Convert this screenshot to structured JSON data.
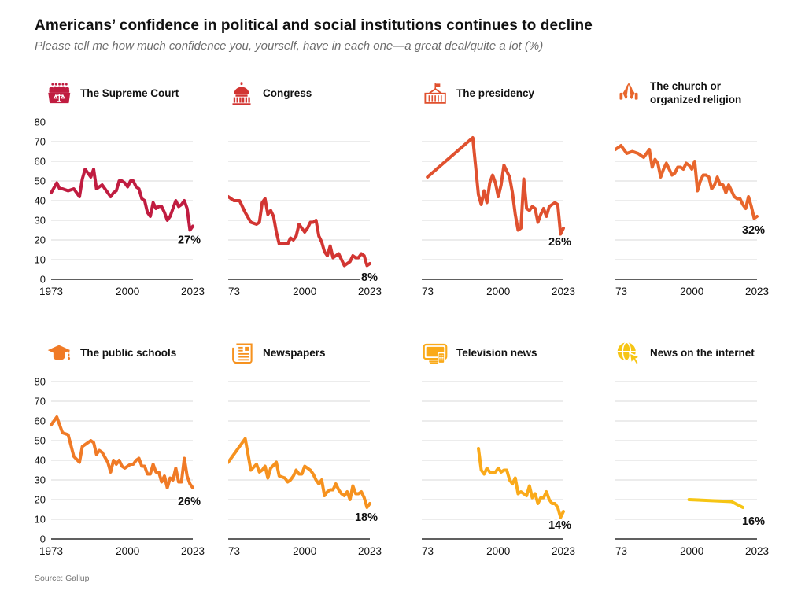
{
  "page": {
    "title": "Americans’ confidence in political and social institutions continues to decline",
    "subtitle": "Please tell me how much confidence you, yourself, have in each one—a great deal/quite a lot (%)",
    "source": "Source: Gallup"
  },
  "axis": {
    "x_range": [
      1973,
      2023
    ],
    "x_ticks": [
      {
        "label": "1973",
        "year": 1973
      },
      {
        "label": "2000",
        "year": 2000
      },
      {
        "label": "2023",
        "year": 2023
      }
    ],
    "y_range": [
      0,
      80
    ],
    "y_tick_labels": [
      "80",
      "70",
      "60",
      "50",
      "40",
      "30",
      "20",
      "10",
      "0"
    ],
    "gridline_color": "#d9d9d9",
    "baseline_color": "#4a4a4a"
  },
  "chart_data": [
    {
      "type": "line",
      "title": "The Supreme Court",
      "icon": "supreme-court-icon",
      "color": "#C01C40",
      "end_label": "27%",
      "show_y_axis_labels": true,
      "grid_values": [
        10,
        20,
        30,
        40,
        50,
        60,
        70
      ],
      "points": [
        [
          1973,
          44
        ],
        [
          1975,
          49
        ],
        [
          1976,
          46
        ],
        [
          1977,
          46
        ],
        [
          1979,
          45
        ],
        [
          1981,
          46
        ],
        [
          1983,
          42
        ],
        [
          1984,
          51
        ],
        [
          1985,
          56
        ],
        [
          1986,
          54
        ],
        [
          1987,
          52
        ],
        [
          1988,
          56
        ],
        [
          1989,
          46
        ],
        [
          1990,
          47
        ],
        [
          1991,
          48
        ],
        [
          1993,
          44
        ],
        [
          1994,
          42
        ],
        [
          1995,
          44
        ],
        [
          1996,
          45
        ],
        [
          1997,
          50
        ],
        [
          1998,
          50
        ],
        [
          1999,
          49
        ],
        [
          2000,
          47
        ],
        [
          2001,
          50
        ],
        [
          2002,
          50
        ],
        [
          2003,
          47
        ],
        [
          2004,
          46
        ],
        [
          2005,
          41
        ],
        [
          2006,
          40
        ],
        [
          2007,
          34
        ],
        [
          2008,
          32
        ],
        [
          2009,
          39
        ],
        [
          2010,
          36
        ],
        [
          2011,
          37
        ],
        [
          2012,
          37
        ],
        [
          2013,
          34
        ],
        [
          2014,
          30
        ],
        [
          2015,
          32
        ],
        [
          2016,
          36
        ],
        [
          2017,
          40
        ],
        [
          2018,
          37
        ],
        [
          2019,
          38
        ],
        [
          2020,
          40
        ],
        [
          2021,
          36
        ],
        [
          2022,
          25
        ],
        [
          2023,
          27
        ]
      ]
    },
    {
      "type": "line",
      "title": "Congress",
      "icon": "capitol-icon",
      "color": "#D23532",
      "end_label": "8%",
      "show_y_axis_labels": false,
      "grid_values": [
        10,
        20,
        30,
        40,
        50,
        60,
        70
      ],
      "points": [
        [
          1973,
          42
        ],
        [
          1975,
          40
        ],
        [
          1977,
          40
        ],
        [
          1979,
          34
        ],
        [
          1981,
          29
        ],
        [
          1983,
          28
        ],
        [
          1984,
          29
        ],
        [
          1985,
          39
        ],
        [
          1986,
          41
        ],
        [
          1987,
          33
        ],
        [
          1988,
          35
        ],
        [
          1989,
          32
        ],
        [
          1990,
          24
        ],
        [
          1991,
          18
        ],
        [
          1992,
          18
        ],
        [
          1993,
          18
        ],
        [
          1994,
          18
        ],
        [
          1995,
          21
        ],
        [
          1996,
          20
        ],
        [
          1997,
          22
        ],
        [
          1998,
          28
        ],
        [
          1999,
          26
        ],
        [
          2000,
          24
        ],
        [
          2001,
          26
        ],
        [
          2002,
          29
        ],
        [
          2003,
          29
        ],
        [
          2004,
          30
        ],
        [
          2005,
          22
        ],
        [
          2006,
          19
        ],
        [
          2007,
          14
        ],
        [
          2008,
          12
        ],
        [
          2009,
          17
        ],
        [
          2010,
          11
        ],
        [
          2011,
          12
        ],
        [
          2012,
          13
        ],
        [
          2013,
          10
        ],
        [
          2014,
          7
        ],
        [
          2015,
          8
        ],
        [
          2016,
          9
        ],
        [
          2017,
          12
        ],
        [
          2018,
          11
        ],
        [
          2019,
          11
        ],
        [
          2020,
          13
        ],
        [
          2021,
          12
        ],
        [
          2022,
          7
        ],
        [
          2023,
          8
        ]
      ]
    },
    {
      "type": "line",
      "title": "The presidency",
      "icon": "white-house-icon",
      "color": "#E0512F",
      "end_label": "26%",
      "show_y_axis_labels": false,
      "grid_values": [
        10,
        20,
        30,
        40,
        50,
        60,
        70
      ],
      "points": [
        [
          1975,
          52
        ],
        [
          1991,
          72
        ],
        [
          1993,
          43
        ],
        [
          1994,
          38
        ],
        [
          1995,
          45
        ],
        [
          1996,
          39
        ],
        [
          1997,
          49
        ],
        [
          1998,
          53
        ],
        [
          1999,
          49
        ],
        [
          2000,
          42
        ],
        [
          2001,
          48
        ],
        [
          2002,
          58
        ],
        [
          2003,
          55
        ],
        [
          2004,
          52
        ],
        [
          2005,
          44
        ],
        [
          2006,
          33
        ],
        [
          2007,
          25
        ],
        [
          2008,
          26
        ],
        [
          2009,
          51
        ],
        [
          2010,
          36
        ],
        [
          2011,
          35
        ],
        [
          2012,
          37
        ],
        [
          2013,
          36
        ],
        [
          2014,
          29
        ],
        [
          2015,
          33
        ],
        [
          2016,
          36
        ],
        [
          2017,
          32
        ],
        [
          2018,
          37
        ],
        [
          2019,
          38
        ],
        [
          2020,
          39
        ],
        [
          2021,
          38
        ],
        [
          2022,
          23
        ],
        [
          2023,
          26
        ]
      ]
    },
    {
      "type": "line",
      "title": "The church or organized religion",
      "icon": "praying-hands-icon",
      "color": "#E8662C",
      "end_label": "32%",
      "show_y_axis_labels": false,
      "grid_values": [
        10,
        20,
        30,
        40,
        50,
        60,
        70
      ],
      "points": [
        [
          1973,
          66
        ],
        [
          1975,
          68
        ],
        [
          1977,
          64
        ],
        [
          1979,
          65
        ],
        [
          1981,
          64
        ],
        [
          1983,
          62
        ],
        [
          1984,
          64
        ],
        [
          1985,
          66
        ],
        [
          1986,
          57
        ],
        [
          1987,
          61
        ],
        [
          1988,
          59
        ],
        [
          1989,
          52
        ],
        [
          1990,
          56
        ],
        [
          1991,
          59
        ],
        [
          1993,
          53
        ],
        [
          1994,
          54
        ],
        [
          1995,
          57
        ],
        [
          1996,
          57
        ],
        [
          1997,
          56
        ],
        [
          1998,
          59
        ],
        [
          1999,
          58
        ],
        [
          2000,
          56
        ],
        [
          2001,
          60
        ],
        [
          2002,
          45
        ],
        [
          2003,
          50
        ],
        [
          2004,
          53
        ],
        [
          2005,
          53
        ],
        [
          2006,
          52
        ],
        [
          2007,
          46
        ],
        [
          2008,
          48
        ],
        [
          2009,
          52
        ],
        [
          2010,
          48
        ],
        [
          2011,
          48
        ],
        [
          2012,
          44
        ],
        [
          2013,
          48
        ],
        [
          2014,
          45
        ],
        [
          2015,
          42
        ],
        [
          2016,
          41
        ],
        [
          2017,
          41
        ],
        [
          2018,
          38
        ],
        [
          2019,
          36
        ],
        [
          2020,
          42
        ],
        [
          2021,
          37
        ],
        [
          2022,
          31
        ],
        [
          2023,
          32
        ]
      ]
    },
    {
      "type": "line",
      "title": "The public schools",
      "icon": "graduation-cap-icon",
      "color": "#F07A26",
      "end_label": "26%",
      "show_y_axis_labels": true,
      "grid_values": [
        10,
        20,
        30,
        40,
        50,
        60,
        70,
        80
      ],
      "points": [
        [
          1973,
          58
        ],
        [
          1975,
          62
        ],
        [
          1977,
          54
        ],
        [
          1979,
          53
        ],
        [
          1981,
          42
        ],
        [
          1983,
          39
        ],
        [
          1984,
          47
        ],
        [
          1985,
          48
        ],
        [
          1986,
          49
        ],
        [
          1987,
          50
        ],
        [
          1988,
          49
        ],
        [
          1989,
          43
        ],
        [
          1990,
          45
        ],
        [
          1991,
          44
        ],
        [
          1993,
          39
        ],
        [
          1994,
          34
        ],
        [
          1995,
          40
        ],
        [
          1996,
          38
        ],
        [
          1997,
          40
        ],
        [
          1998,
          37
        ],
        [
          1999,
          36
        ],
        [
          2000,
          37
        ],
        [
          2001,
          38
        ],
        [
          2002,
          38
        ],
        [
          2003,
          40
        ],
        [
          2004,
          41
        ],
        [
          2005,
          37
        ],
        [
          2006,
          37
        ],
        [
          2007,
          33
        ],
        [
          2008,
          33
        ],
        [
          2009,
          38
        ],
        [
          2010,
          34
        ],
        [
          2011,
          34
        ],
        [
          2012,
          29
        ],
        [
          2013,
          32
        ],
        [
          2014,
          26
        ],
        [
          2015,
          31
        ],
        [
          2016,
          30
        ],
        [
          2017,
          36
        ],
        [
          2018,
          29
        ],
        [
          2019,
          29
        ],
        [
          2020,
          41
        ],
        [
          2021,
          32
        ],
        [
          2022,
          28
        ],
        [
          2023,
          26
        ]
      ]
    },
    {
      "type": "line",
      "title": "Newspapers",
      "icon": "newspaper-icon",
      "color": "#F6921F",
      "end_label": "18%",
      "show_y_axis_labels": false,
      "grid_values": [
        10,
        20,
        30,
        40,
        50,
        60,
        70,
        80
      ],
      "points": [
        [
          1973,
          39
        ],
        [
          1979,
          51
        ],
        [
          1981,
          35
        ],
        [
          1983,
          38
        ],
        [
          1984,
          34
        ],
        [
          1985,
          35
        ],
        [
          1986,
          37
        ],
        [
          1987,
          31
        ],
        [
          1988,
          36
        ],
        [
          1990,
          39
        ],
        [
          1991,
          32
        ],
        [
          1993,
          31
        ],
        [
          1994,
          29
        ],
        [
          1995,
          30
        ],
        [
          1996,
          32
        ],
        [
          1997,
          35
        ],
        [
          1998,
          33
        ],
        [
          1999,
          33
        ],
        [
          2000,
          37
        ],
        [
          2001,
          36
        ],
        [
          2002,
          35
        ],
        [
          2003,
          33
        ],
        [
          2004,
          30
        ],
        [
          2005,
          28
        ],
        [
          2006,
          30
        ],
        [
          2007,
          22
        ],
        [
          2008,
          24
        ],
        [
          2009,
          25
        ],
        [
          2010,
          25
        ],
        [
          2011,
          28
        ],
        [
          2012,
          25
        ],
        [
          2013,
          23
        ],
        [
          2014,
          22
        ],
        [
          2015,
          24
        ],
        [
          2016,
          20
        ],
        [
          2017,
          27
        ],
        [
          2018,
          23
        ],
        [
          2019,
          23
        ],
        [
          2020,
          24
        ],
        [
          2021,
          21
        ],
        [
          2022,
          16
        ],
        [
          2023,
          18
        ]
      ]
    },
    {
      "type": "line",
      "title": "Television news",
      "icon": "television-icon",
      "color": "#FAAA1A",
      "end_label": "14%",
      "show_y_axis_labels": false,
      "grid_values": [
        10,
        20,
        30,
        40,
        50,
        60,
        70,
        80
      ],
      "points": [
        [
          1993,
          46
        ],
        [
          1994,
          35
        ],
        [
          1995,
          33
        ],
        [
          1996,
          36
        ],
        [
          1997,
          34
        ],
        [
          1998,
          34
        ],
        [
          1999,
          34
        ],
        [
          2000,
          36
        ],
        [
          2001,
          34
        ],
        [
          2002,
          35
        ],
        [
          2003,
          35
        ],
        [
          2004,
          30
        ],
        [
          2005,
          28
        ],
        [
          2006,
          31
        ],
        [
          2007,
          23
        ],
        [
          2008,
          24
        ],
        [
          2009,
          23
        ],
        [
          2010,
          22
        ],
        [
          2011,
          27
        ],
        [
          2012,
          21
        ],
        [
          2013,
          23
        ],
        [
          2014,
          18
        ],
        [
          2015,
          21
        ],
        [
          2016,
          21
        ],
        [
          2017,
          24
        ],
        [
          2018,
          20
        ],
        [
          2019,
          18
        ],
        [
          2020,
          18
        ],
        [
          2021,
          16
        ],
        [
          2022,
          11
        ],
        [
          2023,
          14
        ]
      ]
    },
    {
      "type": "line",
      "title": "News on the internet",
      "icon": "globe-cursor-icon",
      "color": "#F6C514",
      "end_label": "16%",
      "show_y_axis_labels": false,
      "grid_values": [
        10,
        20,
        30,
        40,
        50,
        60,
        70,
        80
      ],
      "points": [
        [
          1999,
          20
        ],
        [
          2014,
          19
        ],
        [
          2018,
          16
        ]
      ]
    }
  ]
}
